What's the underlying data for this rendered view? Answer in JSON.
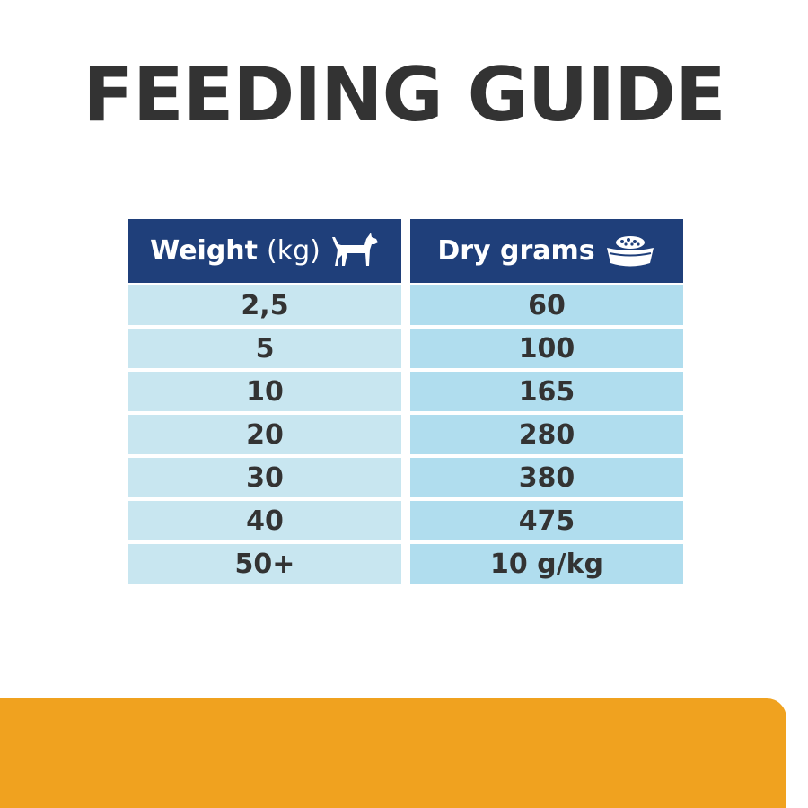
{
  "title": "FEEDING GUIDE",
  "table": {
    "header": {
      "weight_label": "Weight",
      "weight_unit": "(kg)",
      "weight_icon": "dog-icon",
      "dry_label": "Dry grams",
      "dry_icon": "food-bowl-icon"
    },
    "rows": [
      {
        "weight": "2,5",
        "grams": "60"
      },
      {
        "weight": "5",
        "grams": "100"
      },
      {
        "weight": "10",
        "grams": "165"
      },
      {
        "weight": "20",
        "grams": "280"
      },
      {
        "weight": "30",
        "grams": "380"
      },
      {
        "weight": "40",
        "grams": "475"
      },
      {
        "weight": "50+",
        "grams": "10 g/kg"
      }
    ]
  },
  "colors": {
    "title": "#333333",
    "header_bg": "#1f3f7a",
    "left_cell_bg": "#c8e6f0",
    "right_cell_bg": "#b0ddee",
    "band": "#f0a21f"
  }
}
